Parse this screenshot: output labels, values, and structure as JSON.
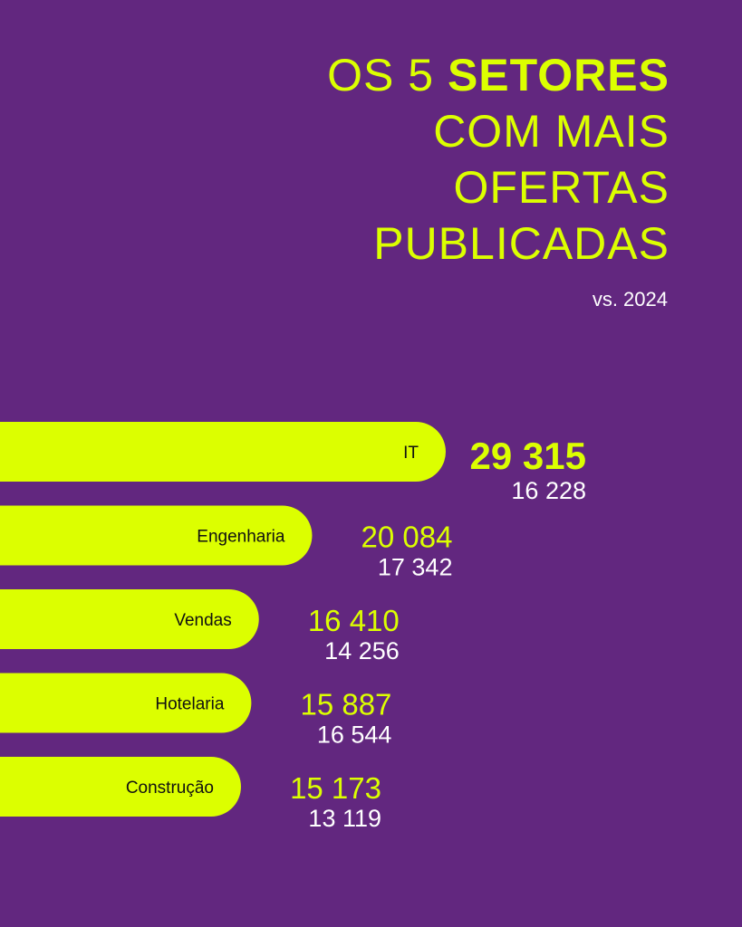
{
  "title": {
    "line1_prefix": "OS 5 ",
    "line1_bold": "SETORES",
    "line2": "COM MAIS",
    "line3": "OFERTAS",
    "line4": "PUBLICADAS"
  },
  "subtitle": "vs. 2024",
  "colors": {
    "background": "#62277f",
    "bar": "#dcff00",
    "current_value": "#dcff00",
    "previous_value": "#ffffff",
    "bar_label": "#111111"
  },
  "chart_data": {
    "type": "bar",
    "orientation": "horizontal",
    "categories": [
      "IT",
      "Engenharia",
      "Vendas",
      "Hotelaria",
      "Construção"
    ],
    "series": [
      {
        "name": "",
        "values": [
          29315,
          20084,
          16410,
          15887,
          15173
        ]
      },
      {
        "name": "",
        "values": [
          16228,
          17342,
          14256,
          16544,
          13119
        ]
      }
    ],
    "value_labels_current": [
      "29 315",
      "20 084",
      "16 410",
      "15 887",
      "15 173"
    ],
    "value_labels_previous": [
      "16 228",
      "17 342",
      "14 256",
      "16 544",
      "13 119"
    ],
    "grid": false,
    "legend": "none"
  }
}
